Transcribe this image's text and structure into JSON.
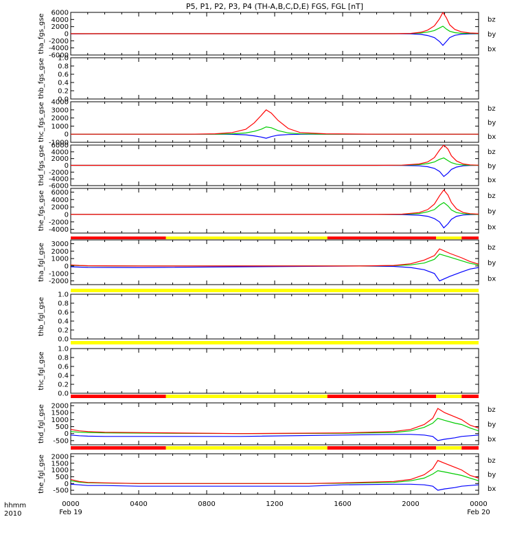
{
  "title": "P5, P1, P2, P3, P4 (TH-A,B,C,D,E) FGS, FGL [nT]",
  "colors": {
    "bx": "#0000ff",
    "by": "#00cc00",
    "bz": "#ff0000",
    "bar_red": "#ff0000",
    "bar_yellow": "#ffff00",
    "baseline": "#9000ff",
    "tick": "#000000"
  },
  "footer": {
    "row1_label": "hhmm",
    "row2_label": "2010",
    "x_ticks": [
      "0000",
      "0400",
      "0800",
      "1200",
      "1600",
      "2000",
      "0000"
    ],
    "date_start": "Feb 19",
    "date_end": "Feb 20"
  },
  "chart_data": [
    {
      "type": "line",
      "ylabel": "tha_fgs_gse",
      "yticks": [
        "6000",
        "4000",
        "2000",
        "0",
        "-2000",
        "-4000",
        "-6000"
      ],
      "ylim": [
        -6000,
        6000
      ],
      "legend": [
        "bz",
        "by",
        "bx"
      ],
      "x_hours": [
        0,
        1,
        2,
        19,
        20,
        20.6,
        21.0,
        21.4,
        21.7,
        21.9,
        22.1,
        22.3,
        22.6,
        23.0,
        23.5,
        24
      ],
      "series": [
        {
          "name": "bx",
          "values": [
            -50,
            -20,
            0,
            0,
            -50,
            -200,
            -500,
            -1100,
            -2200,
            -3300,
            -2200,
            -1100,
            -450,
            -150,
            -50,
            -20
          ]
        },
        {
          "name": "by",
          "values": [
            0,
            0,
            0,
            0,
            50,
            200,
            450,
            900,
            1600,
            2100,
            1300,
            700,
            300,
            100,
            50,
            20
          ]
        },
        {
          "name": "bz",
          "values": [
            0,
            0,
            0,
            0,
            80,
            400,
            1000,
            2200,
            4200,
            6000,
            4500,
            2500,
            1200,
            500,
            200,
            100
          ]
        }
      ]
    },
    {
      "type": "line",
      "ylabel": "thb_fgs_gse",
      "yticks": [
        "1.0",
        "0.8",
        "0.6",
        "0.4",
        "0.2",
        "0.0"
      ],
      "ylim": [
        0,
        1
      ],
      "legend": [],
      "series": []
    },
    {
      "type": "line",
      "ylabel": "thc_fgs_gse",
      "yticks": [
        "4000",
        "3000",
        "2000",
        "1000",
        "0",
        "-1000"
      ],
      "ylim": [
        -1000,
        4000
      ],
      "legend": [
        "bz",
        "by",
        "bx"
      ],
      "x_hours": [
        0,
        3,
        7,
        8.5,
        9.5,
        10.3,
        10.8,
        11.2,
        11.5,
        11.8,
        12.2,
        12.8,
        13.5,
        15,
        18,
        24
      ],
      "series": [
        {
          "name": "bx",
          "values": [
            0,
            0,
            0,
            0,
            -20,
            -80,
            -200,
            -350,
            -500,
            -300,
            -120,
            -40,
            -10,
            0,
            0,
            0
          ]
        },
        {
          "name": "by",
          "values": [
            0,
            0,
            0,
            0,
            50,
            150,
            350,
            600,
            900,
            800,
            450,
            150,
            40,
            0,
            0,
            0
          ]
        },
        {
          "name": "bz",
          "values": [
            0,
            0,
            0,
            50,
            200,
            600,
            1400,
            2300,
            3000,
            2600,
            1700,
            700,
            200,
            50,
            0,
            0
          ]
        }
      ]
    },
    {
      "type": "line",
      "ylabel": "thd_fgs_gse",
      "yticks": [
        "6000",
        "4000",
        "2000",
        "0",
        "-2000",
        "-4000",
        "-6000"
      ],
      "ylim": [
        -6000,
        6000
      ],
      "legend": [
        "bz",
        "by",
        "bx"
      ],
      "x_hours": [
        0,
        1,
        2,
        18,
        19.5,
        20.5,
        21,
        21.4,
        21.7,
        21.95,
        22.2,
        22.4,
        22.7,
        23.1,
        23.5,
        24
      ],
      "series": [
        {
          "name": "bx",
          "values": [
            0,
            0,
            0,
            0,
            -30,
            -150,
            -400,
            -900,
            -1800,
            -3300,
            -2300,
            -1200,
            -500,
            -150,
            -50,
            0
          ]
        },
        {
          "name": "by",
          "values": [
            0,
            0,
            0,
            0,
            40,
            200,
            500,
            1000,
            1800,
            2200,
            1400,
            800,
            350,
            100,
            50,
            0
          ]
        },
        {
          "name": "bz",
          "values": [
            0,
            0,
            0,
            0,
            60,
            400,
            1000,
            2300,
            4500,
            6000,
            4800,
            2800,
            1300,
            400,
            150,
            50
          ]
        }
      ]
    },
    {
      "type": "line",
      "ylabel": "the_fgs_gse",
      "yticks": [
        "6000",
        "4000",
        "2000",
        "0",
        "-2000",
        "-4000"
      ],
      "ylim": [
        -5000,
        7000
      ],
      "legend": [
        "bz",
        "by",
        "bx"
      ],
      "x_hours": [
        0,
        1,
        3,
        18,
        19.5,
        20.5,
        21,
        21.4,
        21.7,
        21.95,
        22.2,
        22.4,
        22.7,
        23.1,
        23.5,
        24
      ],
      "series": [
        {
          "name": "bx",
          "values": [
            0,
            0,
            0,
            0,
            -40,
            -200,
            -500,
            -1100,
            -2000,
            -3600,
            -2500,
            -1300,
            -500,
            -150,
            -50,
            0
          ]
        },
        {
          "name": "by",
          "values": [
            0,
            0,
            0,
            0,
            50,
            250,
            700,
            1300,
            2500,
            3200,
            2300,
            1200,
            500,
            200,
            80,
            0
          ]
        },
        {
          "name": "bz",
          "values": [
            0,
            0,
            0,
            0,
            80,
            500,
            1300,
            2800,
            5000,
            6600,
            5200,
            3200,
            1500,
            500,
            200,
            80
          ]
        }
      ]
    },
    {
      "type": "line",
      "ylabel": "tha_fgl_gse",
      "yticks": [
        "3000",
        "2000",
        "1000",
        "0",
        "-1000",
        "-2000"
      ],
      "ylim": [
        -2500,
        3500
      ],
      "legend": [
        "bz",
        "by",
        "bx"
      ],
      "x_hours": [
        0,
        0.5,
        1,
        4,
        17,
        19,
        20,
        20.8,
        21.4,
        21.7,
        22.3,
        23,
        23.5,
        24
      ],
      "series": [
        {
          "name": "bx",
          "values": [
            -100,
            -150,
            -180,
            -200,
            0,
            -50,
            -200,
            -500,
            -1000,
            -2000,
            -1400,
            -800,
            -400,
            -200
          ]
        },
        {
          "name": "by",
          "values": [
            100,
            50,
            30,
            0,
            0,
            50,
            150,
            400,
            900,
            1600,
            1200,
            700,
            350,
            150
          ]
        },
        {
          "name": "bz",
          "values": [
            150,
            80,
            40,
            0,
            0,
            80,
            300,
            800,
            1400,
            2300,
            1700,
            1100,
            600,
            250
          ]
        }
      ]
    },
    {
      "type": "line",
      "ylabel": "thb_fgl_gse",
      "yticks": [
        "1.0",
        "0.8",
        "0.6",
        "0.4",
        "0.2",
        "0.0"
      ],
      "ylim": [
        0,
        1
      ],
      "legend": [],
      "series": []
    },
    {
      "type": "line",
      "ylabel": "thc_fgl_gse",
      "yticks": [
        "1.0",
        "0.8",
        "0.6",
        "0.4",
        "0.2",
        "0.0"
      ],
      "ylim": [
        0,
        1
      ],
      "legend": [],
      "series": []
    },
    {
      "type": "line",
      "ylabel": "thd_fgl_gse",
      "yticks": [
        "2000",
        "1500",
        "1000",
        "500",
        "0",
        "-500"
      ],
      "ylim": [
        -800,
        2200
      ],
      "legend": [
        "bz",
        "by",
        "bx"
      ],
      "x_hours": [
        0,
        0.5,
        1,
        2,
        10,
        16,
        19,
        20,
        20.8,
        21.3,
        21.6,
        22,
        22.6,
        23,
        23.5,
        24
      ],
      "series": [
        {
          "name": "bx",
          "values": [
            -100,
            -150,
            -180,
            -200,
            -200,
            -100,
            -50,
            -50,
            -100,
            -200,
            -500,
            -400,
            -300,
            -200,
            -150,
            -100
          ]
        },
        {
          "name": "by",
          "values": [
            150,
            100,
            80,
            50,
            0,
            20,
            80,
            200,
            450,
            750,
            1100,
            950,
            750,
            650,
            400,
            200
          ]
        },
        {
          "name": "bz",
          "values": [
            300,
            200,
            150,
            100,
            0,
            50,
            150,
            300,
            650,
            1100,
            1800,
            1500,
            1200,
            1000,
            600,
            400
          ]
        }
      ]
    },
    {
      "type": "line",
      "ylabel": "the_fgl_gse",
      "yticks": [
        "2000",
        "1500",
        "1000",
        "500",
        "0",
        "-500"
      ],
      "ylim": [
        -800,
        2200
      ],
      "legend": [
        "bz",
        "by",
        "bx"
      ],
      "x_hours": [
        0,
        0.5,
        1,
        2,
        4,
        14,
        16,
        19,
        20,
        20.8,
        21.3,
        21.6,
        22,
        22.6,
        23,
        23.5,
        24
      ],
      "series": [
        {
          "name": "bx",
          "values": [
            -50,
            -100,
            -150,
            -150,
            -200,
            -200,
            -100,
            -50,
            -50,
            -100,
            -200,
            -500,
            -400,
            -300,
            -200,
            -150,
            -100
          ]
        },
        {
          "name": "by",
          "values": [
            200,
            100,
            50,
            30,
            0,
            0,
            20,
            80,
            200,
            400,
            700,
            950,
            850,
            700,
            600,
            400,
            200
          ]
        },
        {
          "name": "bz",
          "values": [
            300,
            150,
            80,
            50,
            0,
            0,
            50,
            150,
            300,
            650,
            1100,
            1700,
            1500,
            1200,
            1000,
            600,
            400
          ]
        }
      ]
    }
  ],
  "status_bars": [
    {
      "segments": [
        {
          "from": 0,
          "to": 5.6,
          "color": "red"
        },
        {
          "from": 5.6,
          "to": 15.1,
          "color": "yellow"
        },
        {
          "from": 15.1,
          "to": 21.5,
          "color": "red"
        },
        {
          "from": 21.5,
          "to": 23,
          "color": "yellow"
        },
        {
          "from": 23,
          "to": 24,
          "color": "red"
        }
      ]
    },
    {
      "segments": [
        {
          "from": 0,
          "to": 24,
          "color": "yellow"
        }
      ]
    },
    {
      "segments": [
        {
          "from": 0,
          "to": 24,
          "color": "yellow"
        }
      ]
    },
    {
      "segments": [
        {
          "from": 0,
          "to": 5.6,
          "color": "red"
        },
        {
          "from": 5.6,
          "to": 15.1,
          "color": "yellow"
        },
        {
          "from": 15.1,
          "to": 21.5,
          "color": "red"
        },
        {
          "from": 21.5,
          "to": 23,
          "color": "yellow"
        },
        {
          "from": 23,
          "to": 24,
          "color": "red"
        }
      ]
    },
    {
      "segments": [
        {
          "from": 0,
          "to": 5.6,
          "color": "red"
        },
        {
          "from": 5.6,
          "to": 15.1,
          "color": "yellow"
        },
        {
          "from": 15.1,
          "to": 21.5,
          "color": "red"
        },
        {
          "from": 21.5,
          "to": 23,
          "color": "yellow"
        },
        {
          "from": 23,
          "to": 24,
          "color": "red"
        }
      ]
    }
  ]
}
